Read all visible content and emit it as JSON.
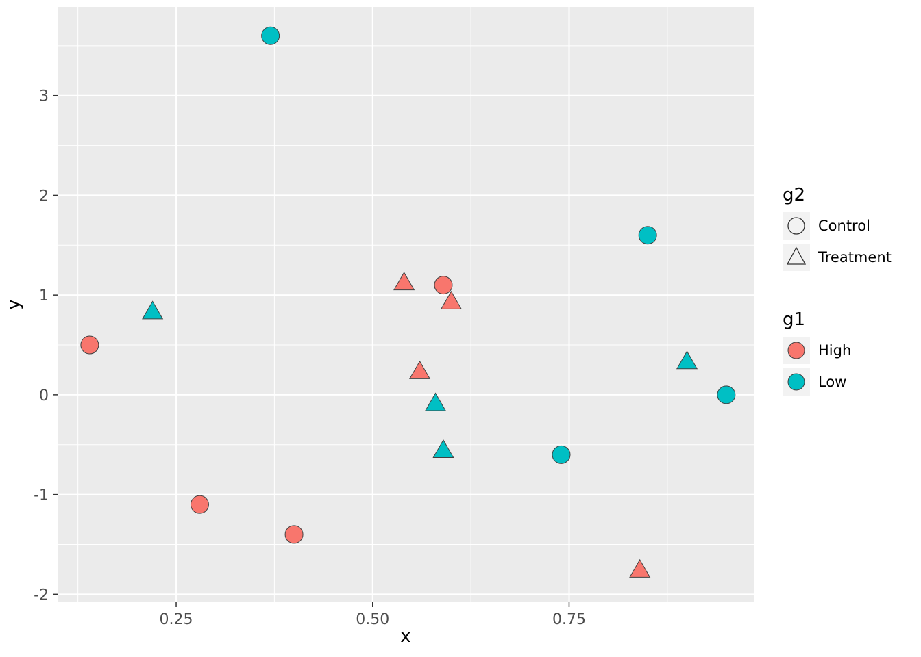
{
  "figure": {
    "background": "#FFFFFF",
    "panel_bg": "#EBEBEB",
    "grid_color": "#FFFFFF",
    "tick_label_color": "#4D4D4D",
    "axis_title_color": "#000000",
    "point_outline": "#404040"
  },
  "chart_data": {
    "type": "scatter",
    "title": "",
    "xlabel": "x",
    "ylabel": "y",
    "xlim": [
      0.1,
      0.985
    ],
    "ylim": [
      -2.08,
      3.89
    ],
    "grid": true,
    "x_ticks": [
      0.25,
      0.5,
      0.75
    ],
    "x_tick_labels": [
      "0.25",
      "0.50",
      "0.75"
    ],
    "y_ticks": [
      -2,
      -1,
      0,
      1,
      2,
      3
    ],
    "y_tick_labels": [
      "-2",
      "-1",
      "0",
      "1",
      "2",
      "3"
    ],
    "x_minor": [
      0.125,
      0.375,
      0.625,
      0.875
    ],
    "y_minor": [
      -1.5,
      -0.5,
      0.5,
      1.5,
      2.5,
      3.5
    ],
    "series": [
      {
        "name": "High / Control",
        "g1": "High",
        "g2": "Control",
        "color": "#F8766D",
        "shape": "circle",
        "points": [
          [
            0.14,
            0.5
          ],
          [
            0.59,
            1.1
          ],
          [
            0.28,
            -1.1
          ],
          [
            0.4,
            -1.4
          ]
        ]
      },
      {
        "name": "High / Treatment",
        "g1": "High",
        "g2": "Treatment",
        "color": "#F8766D",
        "shape": "triangle",
        "points": [
          [
            0.54,
            1.11
          ],
          [
            0.6,
            0.92
          ],
          [
            0.56,
            0.22
          ],
          [
            0.84,
            -1.77
          ]
        ]
      },
      {
        "name": "Low / Control",
        "g1": "Low",
        "g2": "Control",
        "color": "#00BFC4",
        "shape": "circle",
        "points": [
          [
            0.37,
            3.6
          ],
          [
            0.85,
            1.6
          ],
          [
            0.95,
            0.0
          ],
          [
            0.74,
            -0.6
          ]
        ]
      },
      {
        "name": "Low / Treatment",
        "g1": "Low",
        "g2": "Treatment",
        "color": "#00BFC4",
        "shape": "triangle",
        "points": [
          [
            0.22,
            0.82
          ],
          [
            0.58,
            -0.1
          ],
          [
            0.59,
            -0.57
          ],
          [
            0.9,
            0.32
          ]
        ]
      }
    ],
    "legends": [
      {
        "title": "g2",
        "type": "shape",
        "entries": [
          {
            "label": "Control",
            "shape": "circle"
          },
          {
            "label": "Treatment",
            "shape": "triangle"
          }
        ]
      },
      {
        "title": "g1",
        "type": "color",
        "entries": [
          {
            "label": "High",
            "color": "#F8766D"
          },
          {
            "label": "Low",
            "color": "#00BFC4"
          }
        ]
      }
    ]
  }
}
